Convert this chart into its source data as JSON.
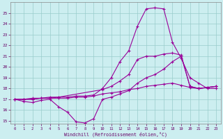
{
  "bg_color": "#cceef0",
  "line_color": "#990099",
  "grid_color": "#99cccc",
  "xlabel": "Windchill (Refroidissement éolien,°C)",
  "xlim_min": -0.5,
  "xlim_max": 23.5,
  "ylim_min": 14.7,
  "ylim_max": 26.0,
  "xticks": [
    0,
    1,
    2,
    3,
    4,
    5,
    6,
    7,
    8,
    9,
    10,
    11,
    12,
    13,
    14,
    15,
    16,
    17,
    18,
    19,
    20,
    21,
    22,
    23
  ],
  "yticks": [
    15,
    16,
    17,
    18,
    19,
    20,
    21,
    22,
    23,
    24,
    25
  ],
  "line1_x": [
    0,
    1,
    2,
    3,
    4,
    5,
    6,
    7,
    8,
    9,
    10,
    11,
    12,
    13,
    14,
    15,
    16,
    17,
    18,
    19,
    20,
    21,
    22,
    23
  ],
  "line1_y": [
    17.0,
    16.8,
    16.7,
    16.9,
    17.0,
    16.3,
    15.8,
    14.9,
    14.8,
    15.2,
    17.0,
    17.2,
    17.5,
    17.8,
    18.5,
    19.0,
    19.3,
    19.8,
    20.5,
    21.0,
    18.2,
    18.0,
    18.1,
    18.2
  ],
  "line2_x": [
    0,
    1,
    2,
    3,
    4,
    5,
    6,
    7,
    8,
    9,
    10,
    11,
    12,
    13,
    14,
    15,
    16,
    17,
    18,
    19,
    20,
    21,
    22,
    23
  ],
  "line2_y": [
    17.0,
    17.0,
    17.0,
    17.1,
    17.1,
    17.1,
    17.1,
    17.2,
    17.2,
    17.3,
    17.5,
    17.6,
    17.7,
    17.9,
    18.0,
    18.2,
    18.3,
    18.4,
    18.5,
    18.3,
    18.1,
    18.0,
    18.1,
    18.2
  ],
  "line3_x": [
    0,
    1,
    2,
    3,
    4,
    5,
    6,
    7,
    8,
    9,
    10,
    11,
    12,
    13,
    14,
    15,
    16,
    17,
    18,
    19,
    20,
    21,
    22,
    23
  ],
  "line3_y": [
    17.0,
    17.0,
    17.1,
    17.1,
    17.2,
    17.2,
    17.2,
    17.3,
    17.3,
    17.4,
    18.0,
    19.0,
    20.5,
    21.5,
    23.8,
    25.4,
    25.5,
    25.4,
    22.3,
    20.8,
    19.0,
    18.5,
    18.0,
    18.0
  ],
  "line4_x": [
    0,
    1,
    2,
    3,
    4,
    5,
    10,
    11,
    12,
    13,
    14,
    15,
    16,
    17,
    18,
    19,
    20,
    21,
    22,
    23
  ],
  "line4_y": [
    17.0,
    17.0,
    17.0,
    17.1,
    17.1,
    17.2,
    17.9,
    18.2,
    18.7,
    19.3,
    20.7,
    21.0,
    21.0,
    21.2,
    21.3,
    21.1,
    18.2,
    18.0,
    18.1,
    18.2
  ]
}
